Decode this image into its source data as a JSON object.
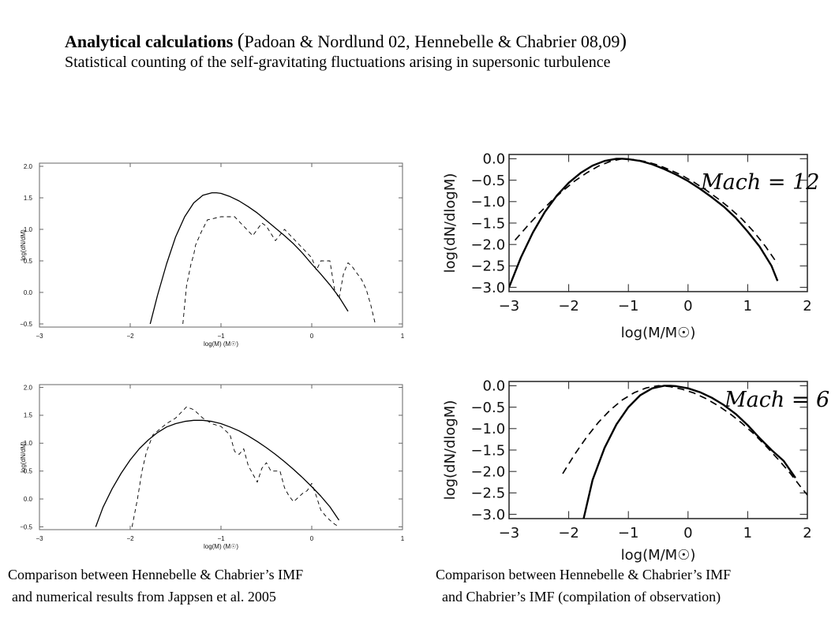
{
  "header": {
    "title_bold": "Analytical calculations",
    "paren_open": "(",
    "citation": "Padoan & Nordlund 02, Hennebelle & Chabrier 08,09",
    "paren_close": ")",
    "subtitle": "Statistical counting of the self-gravitating fluctuations arising in supersonic turbulence"
  },
  "captions": {
    "left_line1": "Comparison between Hennebelle & Chabrier’s IMF",
    "left_line2": "and numerical results from Jappsen et al. 2005",
    "right_line1": "Comparison between Hennebelle & Chabrier’s IMF",
    "right_line2": "and Chabrier’s IMF (compilation of observation)"
  },
  "chart_data": [
    {
      "type": "line",
      "xlabel": "log(M) (M☉)",
      "ylabel": "log(dN/dM)",
      "xlim": [
        -3,
        1
      ],
      "ylim": [
        -0.55,
        2.05
      ],
      "xticks": [
        -3,
        -2,
        -1,
        0,
        1
      ],
      "yticks": [
        -0.5,
        0.0,
        0.5,
        1.0,
        1.5,
        2.0
      ],
      "xtick_labels": [
        "-3",
        "-2",
        "-1",
        "0",
        "1"
      ],
      "ytick_labels": [
        "-0.5",
        "0.0",
        "0.5",
        "1.0",
        "1.5",
        "2.0"
      ],
      "series": [
        {
          "style": "solid",
          "x": [
            -1.78,
            -1.7,
            -1.6,
            -1.5,
            -1.4,
            -1.3,
            -1.2,
            -1.1,
            -1.05,
            -1.0,
            -0.9,
            -0.8,
            -0.7,
            -0.6,
            -0.5,
            -0.4,
            -0.3,
            -0.2,
            -0.1,
            0.0,
            0.1,
            0.2,
            0.3,
            0.4
          ],
          "y": [
            -0.5,
            -0.05,
            0.45,
            0.88,
            1.2,
            1.42,
            1.54,
            1.58,
            1.58,
            1.57,
            1.52,
            1.45,
            1.36,
            1.26,
            1.14,
            1.02,
            0.9,
            0.77,
            0.62,
            0.45,
            0.29,
            0.12,
            -0.07,
            -0.3
          ]
        },
        {
          "style": "dashed",
          "x": [
            -1.42,
            -1.38,
            -1.33,
            -1.3,
            -1.28,
            -1.22,
            -1.15,
            -1.0,
            -0.85,
            -0.75,
            -0.65,
            -0.55,
            -0.5,
            -0.4,
            -0.3,
            -0.2,
            -0.1,
            0.0,
            0.05,
            0.1,
            0.2,
            0.25,
            0.3,
            0.35,
            0.4,
            0.45,
            0.5,
            0.55,
            0.6,
            0.65,
            0.7
          ],
          "y": [
            -0.5,
            0.1,
            0.45,
            0.6,
            0.75,
            0.95,
            1.15,
            1.2,
            1.2,
            1.05,
            0.9,
            1.1,
            1.05,
            0.82,
            1.0,
            0.85,
            0.7,
            0.55,
            0.35,
            0.5,
            0.5,
            0.05,
            -0.1,
            0.3,
            0.47,
            0.4,
            0.3,
            0.2,
            0.05,
            -0.2,
            -0.5
          ]
        }
      ]
    },
    {
      "type": "line",
      "xlabel": "log(M) (M☉)",
      "ylabel": "log(dN/dM)",
      "xlim": [
        -3,
        1
      ],
      "ylim": [
        -0.55,
        2.05
      ],
      "xticks": [
        -3,
        -2,
        -1,
        0,
        1
      ],
      "yticks": [
        -0.5,
        0.0,
        0.5,
        1.0,
        1.5,
        2.0
      ],
      "xtick_labels": [
        "-3",
        "-2",
        "-1",
        "0",
        "1"
      ],
      "ytick_labels": [
        "-0.5",
        "0.0",
        "0.5",
        "1.0",
        "1.5",
        "2.0"
      ],
      "series": [
        {
          "style": "solid",
          "x": [
            -2.38,
            -2.3,
            -2.2,
            -2.1,
            -2.0,
            -1.9,
            -1.8,
            -1.7,
            -1.6,
            -1.5,
            -1.4,
            -1.3,
            -1.25,
            -1.2,
            -1.1,
            -1.0,
            -0.9,
            -0.8,
            -0.7,
            -0.6,
            -0.5,
            -0.4,
            -0.3,
            -0.2,
            -0.1,
            0.0,
            0.1,
            0.2,
            0.3
          ],
          "y": [
            -0.5,
            -0.15,
            0.18,
            0.46,
            0.7,
            0.9,
            1.06,
            1.19,
            1.29,
            1.35,
            1.39,
            1.41,
            1.41,
            1.41,
            1.39,
            1.35,
            1.29,
            1.22,
            1.13,
            1.03,
            0.92,
            0.8,
            0.67,
            0.53,
            0.38,
            0.22,
            0.05,
            -0.14,
            -0.38
          ]
        },
        {
          "style": "dashed",
          "x": [
            -1.98,
            -1.92,
            -1.87,
            -1.82,
            -1.75,
            -1.6,
            -1.5,
            -1.38,
            -1.3,
            -1.2,
            -1.1,
            -1.0,
            -0.9,
            -0.85,
            -0.8,
            -0.75,
            -0.7,
            -0.6,
            -0.55,
            -0.5,
            -0.45,
            -0.35,
            -0.3,
            -0.25,
            -0.2,
            -0.1,
            -0.05,
            0.0,
            0.05,
            0.1,
            0.15,
            0.2,
            0.25,
            0.3
          ],
          "y": [
            -0.5,
            0.0,
            0.5,
            0.85,
            1.15,
            1.35,
            1.45,
            1.65,
            1.6,
            1.45,
            1.35,
            1.3,
            1.15,
            0.85,
            0.8,
            0.9,
            0.6,
            0.3,
            0.55,
            0.65,
            0.5,
            0.5,
            0.2,
            0.05,
            -0.05,
            0.1,
            0.15,
            0.28,
            0.05,
            -0.2,
            -0.3,
            -0.38,
            -0.45,
            -0.5
          ]
        }
      ]
    },
    {
      "type": "line",
      "xlabel": "log(M/M☉)",
      "ylabel": "log(dN/dlogM)",
      "annotation": "Mach = 12",
      "xlim": [
        -3,
        2
      ],
      "ylim": [
        -3.1,
        0.1
      ],
      "xticks": [
        -3,
        -2,
        -1,
        0,
        1,
        2
      ],
      "yticks": [
        0.0,
        -0.5,
        -1.0,
        -1.5,
        -2.0,
        -2.5,
        -3.0
      ],
      "xtick_labels": [
        "-3",
        "-2",
        "-1",
        "0",
        "1",
        "2"
      ],
      "ytick_labels": [
        "0.0",
        "-0.5",
        "-1.0",
        "-1.5",
        "-2.0",
        "-2.5",
        "-3.0"
      ],
      "series": [
        {
          "style": "solid",
          "x": [
            -3.0,
            -2.8,
            -2.6,
            -2.4,
            -2.2,
            -2.0,
            -1.8,
            -1.6,
            -1.4,
            -1.2,
            -1.1,
            -1.0,
            -0.8,
            -0.6,
            -0.4,
            -0.2,
            0.0,
            0.2,
            0.4,
            0.6,
            0.8,
            1.0,
            1.2,
            1.4,
            1.5
          ],
          "y": [
            -3.0,
            -2.3,
            -1.72,
            -1.24,
            -0.86,
            -0.56,
            -0.33,
            -0.16,
            -0.05,
            0.0,
            0.0,
            -0.01,
            -0.05,
            -0.13,
            -0.24,
            -0.37,
            -0.52,
            -0.7,
            -0.9,
            -1.12,
            -1.38,
            -1.7,
            -2.05,
            -2.5,
            -2.85
          ]
        },
        {
          "style": "dashed",
          "x": [
            -2.9,
            -2.7,
            -2.5,
            -2.3,
            -2.1,
            -1.9,
            -1.7,
            -1.5,
            -1.3,
            -1.1,
            -0.9,
            -0.7,
            -0.5,
            -0.3,
            -0.1,
            0.1,
            0.3,
            0.5,
            0.7,
            0.9,
            1.1,
            1.3,
            1.5
          ],
          "y": [
            -1.9,
            -1.58,
            -1.28,
            -1.0,
            -0.75,
            -0.52,
            -0.33,
            -0.17,
            -0.06,
            0.0,
            -0.02,
            -0.07,
            -0.15,
            -0.26,
            -0.39,
            -0.55,
            -0.73,
            -0.93,
            -1.15,
            -1.4,
            -1.7,
            -2.05,
            -2.45
          ]
        }
      ]
    },
    {
      "type": "line",
      "xlabel": "log(M/M☉)",
      "ylabel": "log(dN/dlogM)",
      "annotation": "Mach = 6",
      "xlim": [
        -3,
        2
      ],
      "ylim": [
        -3.1,
        0.1
      ],
      "xticks": [
        -3,
        -2,
        -1,
        0,
        1,
        2
      ],
      "yticks": [
        0.0,
        -0.5,
        -1.0,
        -1.5,
        -2.0,
        -2.5,
        -3.0
      ],
      "xtick_labels": [
        "-3",
        "-2",
        "-1",
        "0",
        "1",
        "2"
      ],
      "ytick_labels": [
        "0.0",
        "-0.5",
        "-1.0",
        "-1.5",
        "-2.0",
        "-2.5",
        "-3.0"
      ],
      "series": [
        {
          "style": "solid",
          "x": [
            -1.75,
            -1.6,
            -1.4,
            -1.2,
            -1.0,
            -0.8,
            -0.6,
            -0.4,
            -0.3,
            -0.2,
            0.0,
            0.2,
            0.4,
            0.6,
            0.8,
            1.0,
            1.2,
            1.4,
            1.6,
            1.8
          ],
          "y": [
            -3.1,
            -2.2,
            -1.45,
            -0.9,
            -0.5,
            -0.22,
            -0.06,
            0.0,
            0.0,
            -0.01,
            -0.06,
            -0.15,
            -0.28,
            -0.45,
            -0.66,
            -0.92,
            -1.22,
            -1.5,
            -1.75,
            -2.15
          ]
        },
        {
          "style": "dashed",
          "x": [
            -2.1,
            -1.9,
            -1.7,
            -1.5,
            -1.3,
            -1.1,
            -0.9,
            -0.7,
            -0.5,
            -0.3,
            -0.1,
            0.1,
            0.3,
            0.5,
            0.7,
            0.9,
            1.1,
            1.3,
            1.5,
            1.7,
            1.9,
            2.0
          ],
          "y": [
            -2.05,
            -1.6,
            -1.2,
            -0.85,
            -0.56,
            -0.33,
            -0.16,
            -0.05,
            0.0,
            -0.02,
            -0.08,
            -0.17,
            -0.3,
            -0.46,
            -0.65,
            -0.87,
            -1.12,
            -1.4,
            -1.7,
            -2.02,
            -2.38,
            -2.55
          ]
        }
      ]
    }
  ]
}
